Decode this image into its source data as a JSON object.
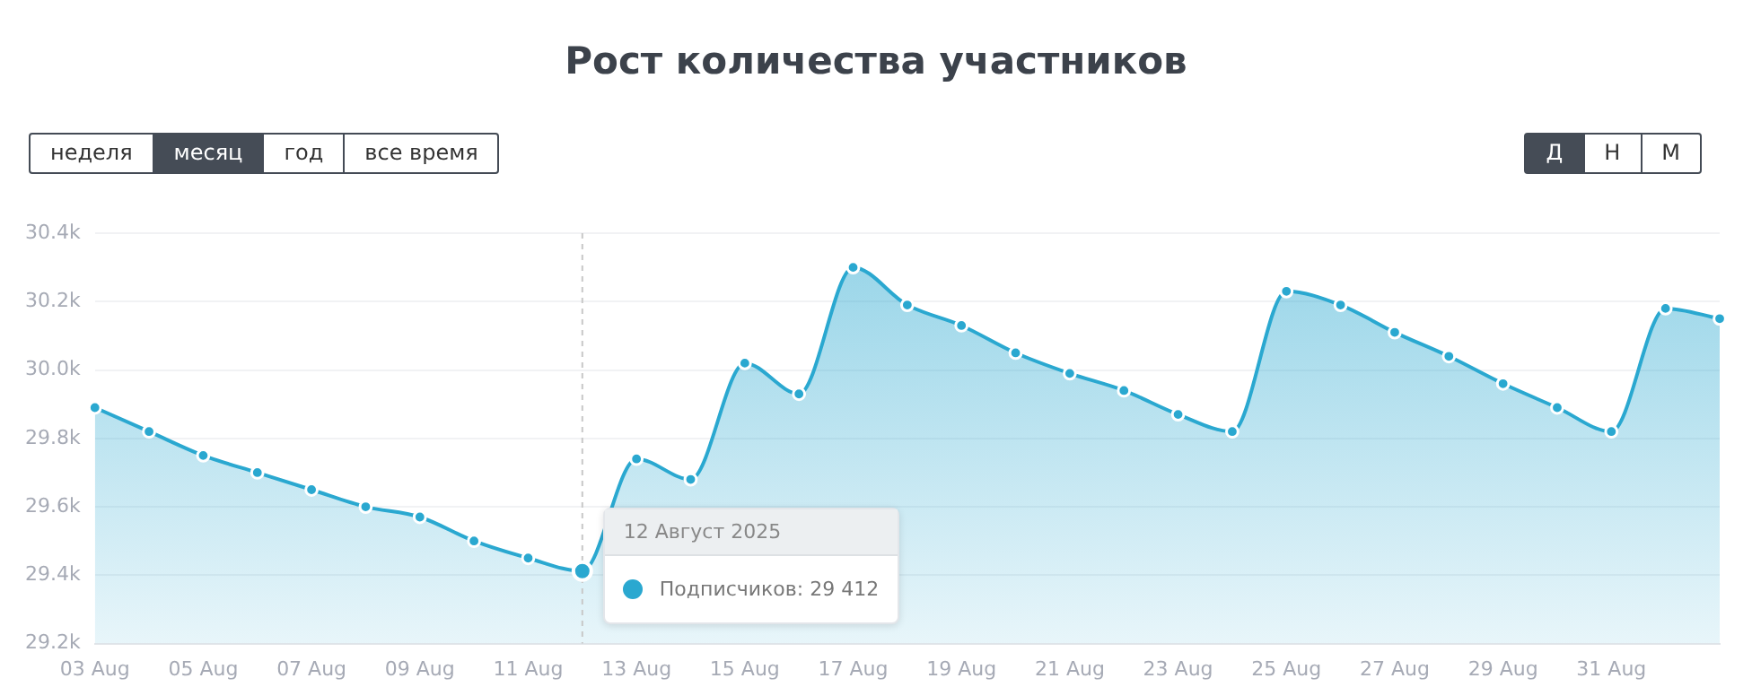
{
  "chart_data": {
    "type": "area",
    "title": "Рост количества участников",
    "categories": [
      "03 Aug",
      null,
      "05 Aug",
      null,
      "07 Aug",
      null,
      "09 Aug",
      null,
      "11 Aug",
      null,
      "13 Aug",
      null,
      "15 Aug",
      null,
      "17 Aug",
      null,
      "19 Aug",
      null,
      "21 Aug",
      null,
      "23 Aug",
      null,
      "25 Aug",
      null,
      "27 Aug",
      null,
      "29 Aug",
      null,
      "31 Aug",
      null,
      null
    ],
    "series": [
      {
        "color": "#2aa8d0",
        "values": [
          29890,
          29820,
          29750,
          29700,
          29650,
          29600,
          29570,
          29500,
          29450,
          29412,
          29740,
          29680,
          30020,
          29930,
          30300,
          30190,
          30130,
          30050,
          29990,
          29940,
          29870,
          29820,
          30230,
          30190,
          30110,
          30040,
          29960,
          29890,
          29820,
          30180,
          30150
        ]
      }
    ],
    "ylim": [
      29200,
      30400
    ],
    "yticks": [
      {
        "value": 29200,
        "label": "29.2k"
      },
      {
        "value": 29400,
        "label": "29.4k"
      },
      {
        "value": 29600,
        "label": "29.6k"
      },
      {
        "value": 29800,
        "label": "29.8k"
      },
      {
        "value": 30000,
        "label": "30.0k"
      },
      {
        "value": 30200,
        "label": "30.2k"
      },
      {
        "value": 30400,
        "label": "30.4k"
      }
    ],
    "grid": "y",
    "marker": "circle",
    "legend": false,
    "annotations": [
      "неделя",
      "месяц",
      "год",
      "все время",
      "Д",
      "Н",
      "М",
      "12 Август 2025",
      "Подписчиков: 29 412"
    ]
  }
}
